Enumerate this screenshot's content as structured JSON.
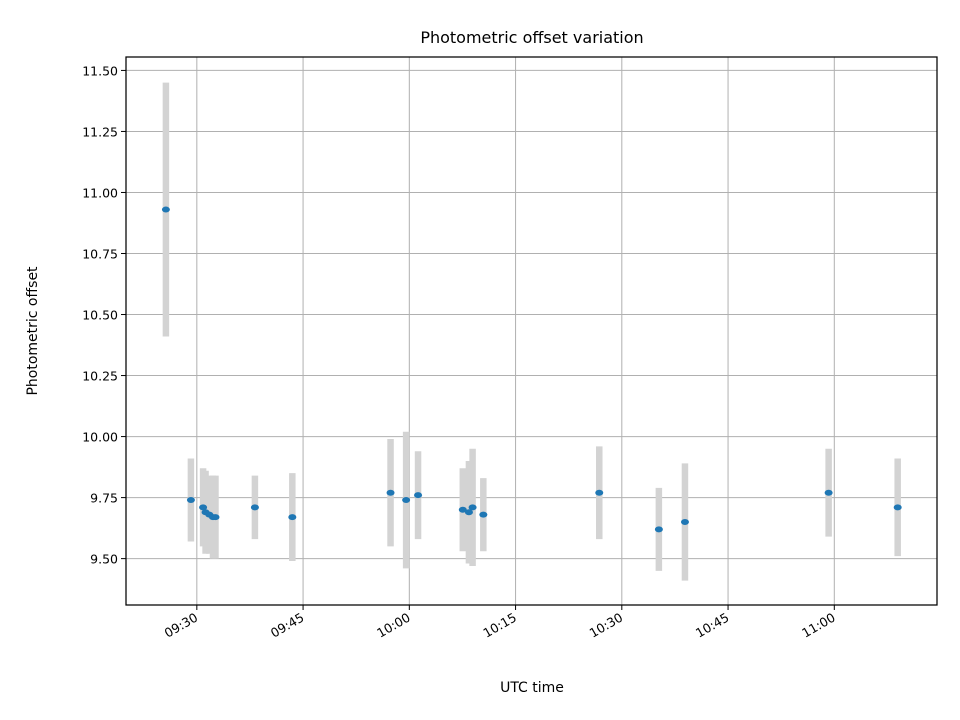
{
  "chart_data": {
    "type": "scatter",
    "title": "Photometric offset variation",
    "xlabel": "UTC time",
    "ylabel": "Photometric offset",
    "x_unit": "UTC time (HH:MM)",
    "xlim": [
      "09:20:00",
      "11:14:30"
    ],
    "ylim": [
      9.31,
      11.555
    ],
    "grid": true,
    "x_ticks": [
      "09:30",
      "09:45",
      "10:00",
      "10:15",
      "10:30",
      "10:45",
      "11:00"
    ],
    "y_ticks": [
      "9.50",
      "9.75",
      "10.00",
      "10.25",
      "10.50",
      "10.75",
      "11.00",
      "11.25",
      "11.50"
    ],
    "point_color": "#1f77b4",
    "errorbar_color": "#d3d3d3",
    "points": [
      {
        "x": "09:25:38",
        "y": 10.93,
        "yerr": 0.52
      },
      {
        "x": "09:29:10",
        "y": 9.74,
        "yerr": 0.17
      },
      {
        "x": "09:30:53",
        "y": 9.71,
        "yerr": 0.16
      },
      {
        "x": "09:31:14",
        "y": 9.69,
        "yerr": 0.17
      },
      {
        "x": "09:31:46",
        "y": 9.68,
        "yerr": 0.16
      },
      {
        "x": "09:32:17",
        "y": 9.67,
        "yerr": 0.17
      },
      {
        "x": "09:32:38",
        "y": 9.67,
        "yerr": 0.17
      },
      {
        "x": "09:38:12",
        "y": 9.71,
        "yerr": 0.13
      },
      {
        "x": "09:43:29",
        "y": 9.67,
        "yerr": 0.18
      },
      {
        "x": "09:57:21",
        "y": 9.77,
        "yerr": 0.22
      },
      {
        "x": "09:59:33",
        "y": 9.74,
        "yerr": 0.28
      },
      {
        "x": "10:01:14",
        "y": 9.76,
        "yerr": 0.18
      },
      {
        "x": "10:07:33",
        "y": 9.7,
        "yerr": 0.17
      },
      {
        "x": "10:08:25",
        "y": 9.69,
        "yerr": 0.21
      },
      {
        "x": "10:08:56",
        "y": 9.71,
        "yerr": 0.24
      },
      {
        "x": "10:10:27",
        "y": 9.68,
        "yerr": 0.15
      },
      {
        "x": "10:26:49",
        "y": 9.77,
        "yerr": 0.19
      },
      {
        "x": "10:35:14",
        "y": 9.62,
        "yerr": 0.17
      },
      {
        "x": "10:38:55",
        "y": 9.65,
        "yerr": 0.24
      },
      {
        "x": "10:59:12",
        "y": 9.77,
        "yerr": 0.18
      },
      {
        "x": "11:08:57",
        "y": 9.71,
        "yerr": 0.2
      }
    ]
  }
}
